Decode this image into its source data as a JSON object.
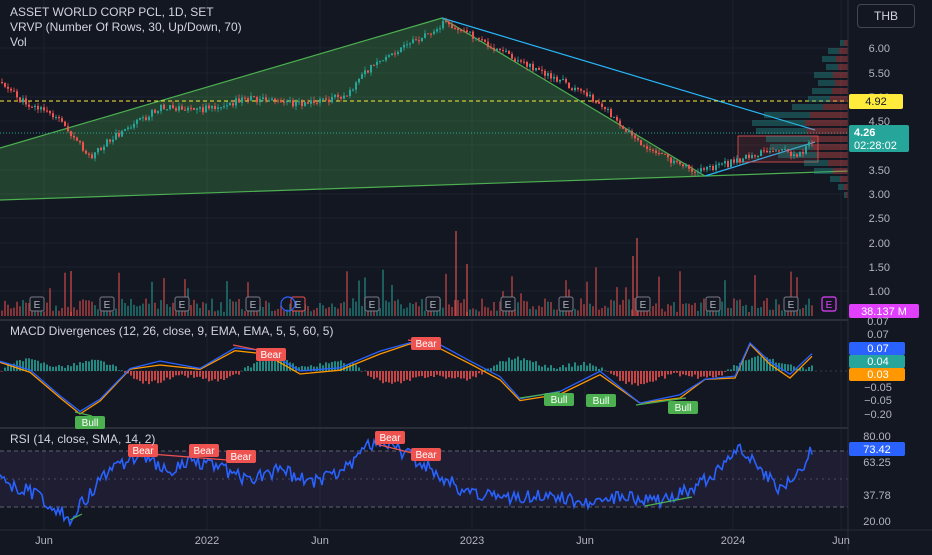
{
  "header": {
    "symbol": "ASSET WORLD CORP PCL, 1D, SET",
    "vrvp": "VRVP (Number Of Rows, 30, Up/Down, 70)",
    "vol": "Vol",
    "currency": "THB"
  },
  "price_pane": {
    "axis_ticks": [
      "6.00",
      "5.50",
      "5.00",
      "4.50",
      "4.00",
      "3.50",
      "3.00",
      "2.50",
      "2.00",
      "1.50",
      "1.00"
    ],
    "labels": {
      "level": "4.92",
      "last": "4.26",
      "countdown": "02:28:02",
      "volume": "38.137 M"
    },
    "earnings_marker": "E",
    "colors": {
      "up": "#26a69a",
      "down": "#ef5350",
      "level": "#ffeb3b",
      "wedge": "#4caf50",
      "trend": "#29b6f6",
      "volume_badge": "#e040fb"
    }
  },
  "macd_pane": {
    "title": "MACD Divergences  (12, 26, close, 9, EMA, EMA, 5, 5, 60, 5)",
    "axis_values": [
      "0.07",
      "0.07",
      "0.07",
      "0.04",
      "0.03",
      "−0.05",
      "−0.05",
      "−0.20"
    ],
    "badges": {
      "bear1": "Bear",
      "bear2": "Bear",
      "bull1": "Bull",
      "bull2": "Bull",
      "bull3": "Bull",
      "bull4": "Bull"
    },
    "colors": {
      "macd": "#2962ff",
      "signal": "#ff9800",
      "bear": "#ef5350",
      "bull": "#4caf50"
    }
  },
  "rsi_pane": {
    "title": "RSI (14, close, SMA, 14, 2)",
    "axis_values": [
      "80.00",
      "73.42",
      "63.25",
      "37.78",
      "20.00"
    ],
    "badges": {
      "bear1": "Bear",
      "bear2": "Bear",
      "bear3": "Bear",
      "bear4": "Bear",
      "bear5": "Bear"
    },
    "colors": {
      "rsi": "#2962ff",
      "band": "#7e57c2"
    }
  },
  "time_axis": [
    "Jun",
    "2022",
    "Jun",
    "2023",
    "Jun",
    "2024",
    "Jun"
  ]
}
